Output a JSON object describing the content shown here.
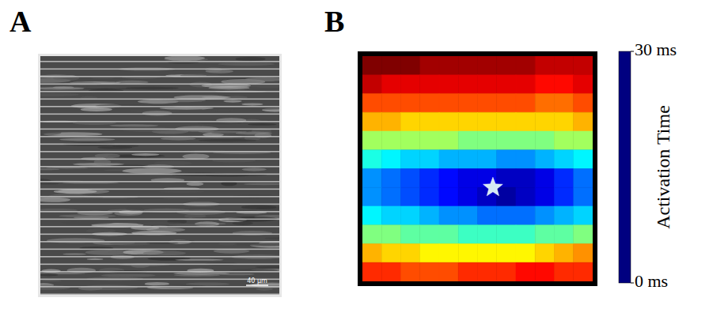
{
  "panel_labels": [
    "A",
    "B"
  ],
  "micrograph": {
    "scale_bar": "40 μm"
  },
  "chart_data": {
    "type": "heatmap",
    "tick_labels": false,
    "xlim": [
      0,
      12
    ],
    "ylim": [
      0,
      12
    ],
    "cells": [
      [
        30,
        30,
        30,
        29,
        29,
        29,
        29,
        29,
        29,
        28,
        28,
        28
      ],
      [
        28,
        27,
        27,
        27,
        27,
        27,
        27,
        27,
        27,
        26,
        26,
        27
      ],
      [
        24,
        24,
        24,
        24,
        24,
        24,
        24,
        24,
        24,
        23,
        23,
        24
      ],
      [
        21,
        21,
        20,
        20,
        20,
        20,
        20,
        20,
        20,
        20,
        20,
        21
      ],
      [
        16,
        16,
        16,
        16,
        16,
        15,
        15,
        15,
        15,
        15,
        16,
        16
      ],
      [
        12,
        11,
        10,
        10,
        9,
        9,
        9,
        8,
        8,
        9,
        10,
        11
      ],
      [
        8,
        7,
        6,
        5,
        4,
        3,
        3,
        2,
        2,
        3,
        5,
        7
      ],
      [
        8,
        7,
        6,
        5,
        4,
        3,
        2,
        1,
        2,
        3,
        5,
        7
      ],
      [
        11,
        10,
        10,
        9,
        8,
        8,
        7,
        7,
        7,
        8,
        9,
        10
      ],
      [
        15,
        15,
        14,
        14,
        14,
        13,
        13,
        13,
        13,
        14,
        14,
        15
      ],
      [
        21,
        20,
        20,
        19,
        19,
        19,
        19,
        19,
        19,
        20,
        21,
        22
      ],
      [
        25,
        25,
        24,
        24,
        24,
        25,
        25,
        25,
        26,
        26,
        25,
        25
      ]
    ],
    "colorbar": {
      "title": "Activation Time",
      "range": [
        0,
        30
      ],
      "ticks": [
        {
          "value": 0,
          "label": "0 ms"
        },
        {
          "value": 30,
          "label": "30 ms"
        }
      ]
    },
    "stimulus": {
      "x": 6.8,
      "y": 7,
      "marker": "star"
    }
  }
}
